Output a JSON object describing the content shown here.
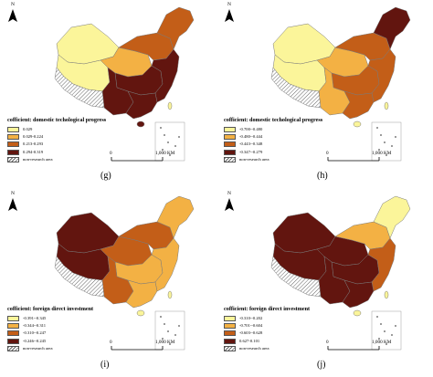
{
  "colors": {
    "light": "#fbf59a",
    "mid": "#f3b144",
    "orange": "#c35e18",
    "dark": "#62150f",
    "nodata_hatch": "#666666",
    "border": "#7a7a7a"
  },
  "north_symbol": "N",
  "scale": {
    "zero": "0",
    "end": "1,000 KM"
  },
  "nodata_label": "non-research area",
  "panels": [
    {
      "id": "g",
      "label": "(g)",
      "legend_title": "cofficient: domestic techological progress",
      "legend": [
        "0.029",
        "0.029-0.224",
        "0.213-0.293",
        "0.294-0.319"
      ],
      "region_classes": {
        "ne": 2,
        "north": 2,
        "west": 0,
        "nw": 0,
        "center": 3,
        "south": 3,
        "east": 3,
        "north_central": 1,
        "southwest": 3,
        "hainan": 3,
        "taiwan": 0
      }
    },
    {
      "id": "h",
      "label": "(h)",
      "legend_title": "cofficient: domestic techological progress",
      "legend": [
        "-0.700--0.480",
        "-0.480--0.444",
        "-0.443--0.348",
        "-0.347--0.279"
      ],
      "region_classes": {
        "ne": 3,
        "north": 2,
        "west": 0,
        "nw": 0,
        "center": 2,
        "south": 2,
        "east": 2,
        "north_central": 1,
        "southwest": 1,
        "hainan": 0,
        "taiwan": 0
      }
    },
    {
      "id": "i",
      "label": "(i)",
      "legend_title": "cofficient: foreign direct investment",
      "legend": [
        "-0.391--0.345",
        "-0.344--0.311",
        "-0.310--0.247",
        "-0.246--0.245"
      ],
      "region_classes": {
        "ne": 1,
        "north": 2,
        "west": 3,
        "nw": 3,
        "center": 1,
        "south": 1,
        "east": 1,
        "north_central": 2,
        "southwest": 2,
        "hainan": 0,
        "taiwan": 0
      }
    },
    {
      "id": "j",
      "label": "(j)",
      "legend_title": "cofficient: foreign direct investment",
      "legend": [
        "-0.310--0.202",
        "-0.701--0.604",
        "-0.603--0.628",
        "0.627-0.101"
      ],
      "region_classes": {
        "ne": 0,
        "north": 1,
        "west": 3,
        "nw": 3,
        "center": 3,
        "south": 3,
        "east": 2,
        "north_central": 3,
        "southwest": 3,
        "hainan": 0,
        "taiwan": 0
      }
    }
  ]
}
